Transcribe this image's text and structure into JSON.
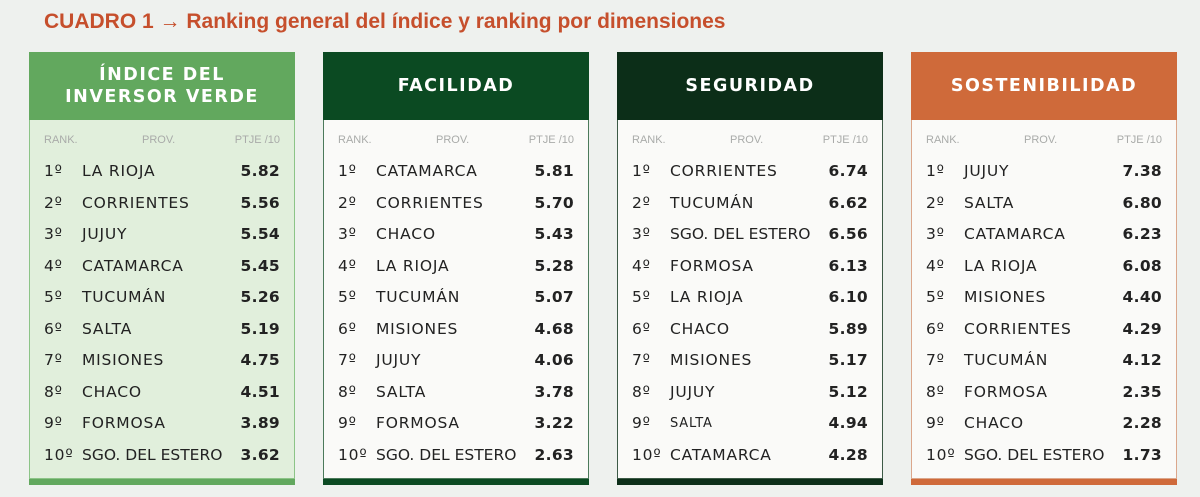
{
  "title": "CUADRO 1 → Ranking general del índice y ranking por dimensiones",
  "columns": {
    "rank": "RANK.",
    "prov": "PROV.",
    "score": "PTJE /10"
  },
  "cards": [
    {
      "title": "ÍNDICE DEL INVERSOR VERDE",
      "color": "#62a85e",
      "body": "#e1efdc",
      "border": "#8cc487",
      "rows": [
        [
          "1º",
          "LA RIOJA",
          "5.82"
        ],
        [
          "2º",
          "CORRIENTES",
          "5.56"
        ],
        [
          "3º",
          "JUJUY",
          "5.54"
        ],
        [
          "4º",
          "CATAMARCA",
          "5.45"
        ],
        [
          "5º",
          "TUCUMÁN",
          "5.26"
        ],
        [
          "6º",
          "SALTA",
          "5.19"
        ],
        [
          "7º",
          "MISIONES",
          "4.75"
        ],
        [
          "8º",
          "CHACO",
          "4.51"
        ],
        [
          "9º",
          "FORMOSA",
          "3.89"
        ],
        [
          "10º",
          "SGO. DEL ESTERO",
          "3.62"
        ]
      ]
    },
    {
      "title": "FACILIDAD",
      "color": "#0b4a22",
      "body": "#fafaf8",
      "border": "#4b7a5a",
      "rows": [
        [
          "1º",
          "CATAMARCA",
          "5.81"
        ],
        [
          "2º",
          "CORRIENTES",
          "5.70"
        ],
        [
          "3º",
          "CHACO",
          "5.43"
        ],
        [
          "4º",
          "LA RIOJA",
          "5.28"
        ],
        [
          "5º",
          "TUCUMÁN",
          "5.07"
        ],
        [
          "6º",
          "MISIONES",
          "4.68"
        ],
        [
          "7º",
          "JUJUY",
          "4.06"
        ],
        [
          "8º",
          "SALTA",
          "3.78"
        ],
        [
          "9º",
          "FORMOSA",
          "3.22"
        ],
        [
          "10º",
          "SGO. DEL ESTERO",
          "2.63"
        ]
      ]
    },
    {
      "title": "SEGURIDAD",
      "color": "#0c2e18",
      "body": "#fafaf8",
      "border": "#3c5a46",
      "rows": [
        [
          "1º",
          "CORRIENTES",
          "6.74"
        ],
        [
          "2º",
          "TUCUMÁN",
          "6.62"
        ],
        [
          "3º",
          "SGO. DEL ESTERO",
          "6.56"
        ],
        [
          "4º",
          "FORMOSA",
          "6.13"
        ],
        [
          "5º",
          "LA RIOJA",
          "6.10"
        ],
        [
          "6º",
          "CHACO",
          "5.89"
        ],
        [
          "7º",
          "MISIONES",
          "5.17"
        ],
        [
          "8º",
          "JUJUY",
          "5.12"
        ],
        [
          "9º",
          "SALTA",
          "4.94"
        ],
        [
          "10º",
          "CATAMARCA",
          "4.28"
        ]
      ]
    },
    {
      "title": "SOSTENIBILIDAD",
      "color": "#cf6a3a",
      "body": "#fafaf8",
      "border": "#dba78c",
      "rows": [
        [
          "1º",
          "JUJUY",
          "7.38"
        ],
        [
          "2º",
          "SALTA",
          "6.80"
        ],
        [
          "3º",
          "CATAMARCA",
          "6.23"
        ],
        [
          "4º",
          "LA RIOJA",
          "6.08"
        ],
        [
          "5º",
          "MISIONES",
          "4.40"
        ],
        [
          "6º",
          "CORRIENTES",
          "4.29"
        ],
        [
          "7º",
          "TUCUMÁN",
          "4.12"
        ],
        [
          "8º",
          "FORMOSA",
          "2.35"
        ],
        [
          "9º",
          "CHACO",
          "2.28"
        ],
        [
          "10º",
          "SGO. DEL ESTERO",
          "1.73"
        ]
      ]
    }
  ]
}
